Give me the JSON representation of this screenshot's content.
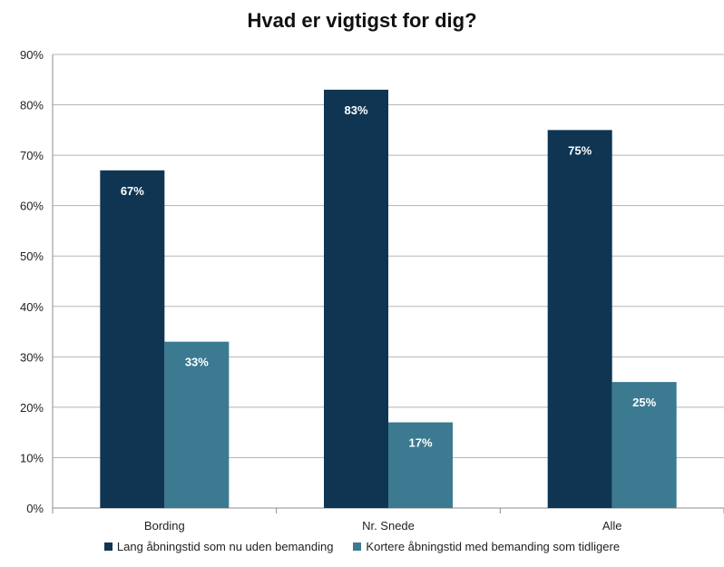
{
  "colors": {
    "series1": "#0f3553",
    "series2": "#3b7a90",
    "grid": "#b5b5b5",
    "text": "#222222"
  },
  "chart_data": {
    "type": "bar",
    "title": "Hvad er vigtigst for dig?",
    "xlabel": "",
    "ylabel": "",
    "categories": [
      "Bording",
      "Nr. Snede",
      "Alle"
    ],
    "series": [
      {
        "name": "Lang åbningstid som nu uden bemanding",
        "values": [
          67,
          83,
          75
        ],
        "labels": [
          "67%",
          "83%",
          "75%"
        ]
      },
      {
        "name": "Kortere åbningstid med bemanding som tidligere",
        "values": [
          33,
          17,
          25
        ],
        "labels": [
          "33%",
          "17%",
          "25%"
        ]
      }
    ],
    "ylim": [
      0,
      90
    ],
    "yticks": [
      0,
      10,
      20,
      30,
      40,
      50,
      60,
      70,
      80,
      90
    ],
    "ytick_labels": [
      "0%",
      "10%",
      "20%",
      "30%",
      "40%",
      "50%",
      "60%",
      "70%",
      "80%",
      "90%"
    ],
    "grid": true,
    "legend_position": "bottom"
  }
}
